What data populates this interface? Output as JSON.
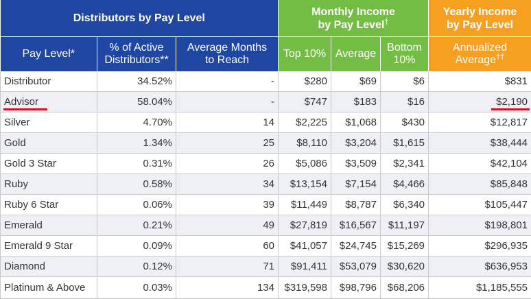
{
  "groups": {
    "distributors": "Distributors by Pay Level",
    "monthly_line1": "Monthly Income",
    "monthly_line2": "by Pay Level",
    "monthly_sup": "†",
    "yearly_line1": "Yearly Income",
    "yearly_line2": "by Pay Level"
  },
  "headers": {
    "pay_level": "Pay Level*",
    "pct_line1": "% of Active",
    "pct_line2": "Distributors**",
    "avg_line1": "Average Months",
    "avg_line2": "to Reach",
    "top10": "Top 10%",
    "average": "Average",
    "bottom_line1": "Bottom",
    "bottom_line2": "10%",
    "annual_line1": "Annualized",
    "annual_line2": "Average",
    "annual_sup": "††"
  },
  "colors": {
    "blue": "#1f46a0",
    "green": "#74bd45",
    "orange": "#f6a021",
    "highlight_underline": "#e0121e"
  },
  "rows": [
    {
      "level": "Distributor",
      "pct": "34.52%",
      "months": "-",
      "top10": "$280",
      "average": "$69",
      "bottom10": "$6",
      "annualized": "$831"
    },
    {
      "level": "Advisor",
      "pct": "58.04%",
      "months": "-",
      "top10": "$747",
      "average": "$183",
      "bottom10": "$16",
      "annualized": "$2,190"
    },
    {
      "level": "Silver",
      "pct": "4.70%",
      "months": "14",
      "top10": "$2,225",
      "average": "$1,068",
      "bottom10": "$430",
      "annualized": "$12,817"
    },
    {
      "level": "Gold",
      "pct": "1.34%",
      "months": "25",
      "top10": "$8,110",
      "average": "$3,204",
      "bottom10": "$1,615",
      "annualized": "$38,444"
    },
    {
      "level": "Gold 3 Star",
      "pct": "0.31%",
      "months": "26",
      "top10": "$5,086",
      "average": "$3,509",
      "bottom10": "$2,341",
      "annualized": "$42,104"
    },
    {
      "level": "Ruby",
      "pct": "0.58%",
      "months": "34",
      "top10": "$13,154",
      "average": "$7,154",
      "bottom10": "$4,466",
      "annualized": "$85,848"
    },
    {
      "level": "Ruby 6 Star",
      "pct": "0.06%",
      "months": "39",
      "top10": "$11,449",
      "average": "$8,787",
      "bottom10": "$6,340",
      "annualized": "$105,447"
    },
    {
      "level": "Emerald",
      "pct": "0.21%",
      "months": "49",
      "top10": "$27,819",
      "average": "$16,567",
      "bottom10": "$11,197",
      "annualized": "$198,801"
    },
    {
      "level": "Emerald 9 Star",
      "pct": "0.09%",
      "months": "60",
      "top10": "$41,057",
      "average": "$24,745",
      "bottom10": "$15,269",
      "annualized": "$296,935"
    },
    {
      "level": "Diamond",
      "pct": "0.12%",
      "months": "71",
      "top10": "$91,411",
      "average": "$53,079",
      "bottom10": "$30,620",
      "annualized": "$636,953"
    },
    {
      "level": "Platinum & Above",
      "pct": "0.03%",
      "months": "134",
      "top10": "$319,598",
      "average": "$98,796",
      "bottom10": "$68,206",
      "annualized": "$1,185,555"
    }
  ]
}
